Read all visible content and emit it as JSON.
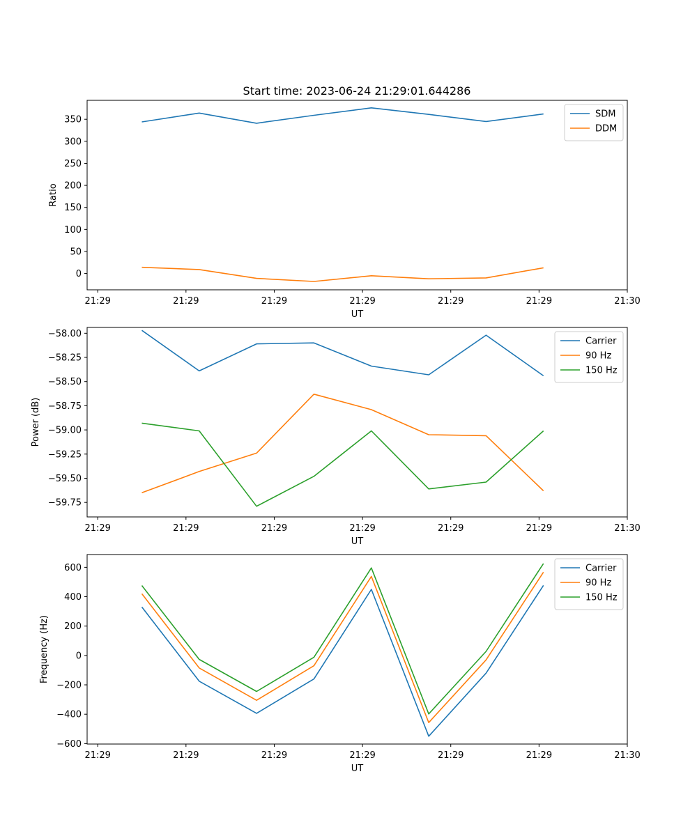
{
  "figure": {
    "title": "Start time: 2023-06-24 21:29:01.644286"
  },
  "chart_data": [
    {
      "type": "line",
      "xlabel": "UT",
      "ylabel": "Ratio",
      "x_ticks": [
        "21:29",
        "21:29",
        "21:29",
        "21:29",
        "21:29",
        "21:29",
        "21:30"
      ],
      "x_tick_pos": [
        0,
        1,
        2,
        3,
        4,
        5,
        6
      ],
      "xlim": [
        -0.12,
        6
      ],
      "x": [
        0.5,
        1.15,
        1.8,
        2.45,
        3.1,
        3.75,
        4.4,
        5.05
      ],
      "ylim": [
        -37,
        393
      ],
      "y_ticks": [
        0,
        50,
        100,
        150,
        200,
        250,
        300,
        350
      ],
      "y_decimals": 0,
      "legend": "top-right",
      "series": [
        {
          "name": "SDM",
          "color": "#1f77b4",
          "values": [
            344,
            364,
            341,
            359,
            376,
            361,
            345,
            362
          ]
        },
        {
          "name": "DDM",
          "color": "#ff7f0e",
          "values": [
            14,
            9,
            -11,
            -18,
            -5,
            -12,
            -10,
            13
          ]
        }
      ]
    },
    {
      "type": "line",
      "xlabel": "UT",
      "ylabel": "Power (dB)",
      "x_ticks": [
        "21:29",
        "21:29",
        "21:29",
        "21:29",
        "21:29",
        "21:29",
        "21:30"
      ],
      "x_tick_pos": [
        0,
        1,
        2,
        3,
        4,
        5,
        6
      ],
      "xlim": [
        -0.12,
        6
      ],
      "x": [
        0.5,
        1.15,
        1.8,
        2.45,
        3.1,
        3.75,
        4.4,
        5.05
      ],
      "ylim": [
        -59.9,
        -57.94
      ],
      "y_ticks": [
        -58.0,
        -58.25,
        -58.5,
        -58.75,
        -59.0,
        -59.25,
        -59.5,
        -59.75
      ],
      "y_decimals": 2,
      "legend": "top-right",
      "series": [
        {
          "name": "Carrier",
          "color": "#1f77b4",
          "values": [
            -57.97,
            -58.39,
            -58.11,
            -58.1,
            -58.34,
            -58.43,
            -58.02,
            -58.44
          ]
        },
        {
          "name": "90 Hz",
          "color": "#ff7f0e",
          "values": [
            -59.65,
            -59.43,
            -59.24,
            -58.63,
            -58.79,
            -59.05,
            -59.06,
            -59.63
          ]
        },
        {
          "name": "150 Hz",
          "color": "#2ca02c",
          "values": [
            -58.93,
            -59.01,
            -59.79,
            -59.48,
            -59.01,
            -59.61,
            -59.54,
            -59.01
          ]
        }
      ]
    },
    {
      "type": "line",
      "xlabel": "UT",
      "ylabel": "Frequency (Hz)",
      "x_ticks": [
        "21:29",
        "21:29",
        "21:29",
        "21:29",
        "21:29",
        "21:29",
        "21:30"
      ],
      "x_tick_pos": [
        0,
        1,
        2,
        3,
        4,
        5,
        6
      ],
      "xlim": [
        -0.12,
        6
      ],
      "x": [
        0.5,
        1.15,
        1.8,
        2.45,
        3.1,
        3.75,
        4.4,
        5.05
      ],
      "ylim": [
        -603,
        687
      ],
      "y_ticks": [
        -600,
        -400,
        -200,
        0,
        200,
        400,
        600
      ],
      "y_decimals": 0,
      "legend": "top-right",
      "series": [
        {
          "name": "Carrier",
          "color": "#1f77b4",
          "values": [
            330,
            -175,
            -394,
            -160,
            450,
            -550,
            -120,
            477
          ]
        },
        {
          "name": "90 Hz",
          "color": "#ff7f0e",
          "values": [
            420,
            -85,
            -305,
            -70,
            538,
            -457,
            -30,
            567
          ]
        },
        {
          "name": "150 Hz",
          "color": "#2ca02c",
          "values": [
            476,
            -27,
            -245,
            -12,
            596,
            -398,
            28,
            626
          ]
        }
      ]
    }
  ]
}
